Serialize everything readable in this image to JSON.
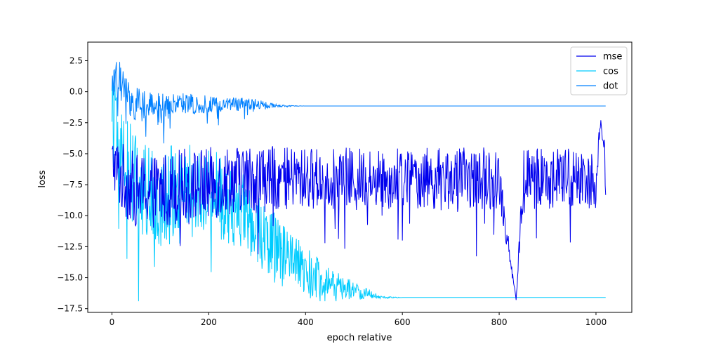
{
  "chart_data": {
    "type": "line",
    "title": "",
    "xlabel": "epoch relative",
    "ylabel": "loss",
    "xlim": [
      -50,
      1074
    ],
    "ylim": [
      -17.8,
      4.0
    ],
    "x_ticks": [
      0,
      200,
      400,
      600,
      800,
      1000
    ],
    "x_tick_labels": [
      "0",
      "200",
      "400",
      "600",
      "800",
      "1000"
    ],
    "y_ticks": [
      2.5,
      0.0,
      -2.5,
      -5.0,
      -7.5,
      -10.0,
      -12.5,
      -15.0,
      -17.5
    ],
    "y_tick_labels": [
      "2.5",
      "0.0",
      "−2.5",
      "−5.0",
      "−7.5",
      "−10.0",
      "−12.5",
      "−15.0",
      "−17.5"
    ],
    "grid": false,
    "legend_position": "top-right",
    "series": [
      {
        "name": "mse",
        "color": "#0000ee",
        "x": [
          0,
          20,
          50,
          100,
          150,
          200,
          250,
          300,
          350,
          400,
          450,
          500,
          550,
          600,
          650,
          700,
          750,
          800,
          835,
          850,
          900,
          950,
          1000,
          1010,
          1020
        ],
        "values": [
          -5.5,
          -7.0,
          -8.0,
          -8.0,
          -7.5,
          -7.5,
          -7.0,
          -7.0,
          -7.0,
          -7.0,
          -7.0,
          -7.0,
          -7.0,
          -7.0,
          -7.0,
          -7.0,
          -7.0,
          -7.0,
          -16.8,
          -7.0,
          -7.0,
          -7.0,
          -7.0,
          -2.3,
          -6.5
        ],
        "spread": [
          2.0,
          3.0,
          3.0,
          3.0,
          3.0,
          3.0,
          2.8,
          2.8,
          2.5,
          2.5,
          2.5,
          2.5,
          2.5,
          2.5,
          2.5,
          2.5,
          2.5,
          2.5,
          0,
          2.5,
          2.5,
          2.5,
          2.5,
          0,
          2.0
        ]
      },
      {
        "name": "cos",
        "color": "#00ccff",
        "x": [
          0,
          10,
          30,
          60,
          100,
          150,
          200,
          250,
          300,
          350,
          400,
          450,
          500,
          520,
          560,
          600,
          650,
          700,
          800,
          900,
          1000,
          1020
        ],
        "values": [
          0.0,
          -4.0,
          -6.0,
          -8.0,
          -8.5,
          -7.5,
          -8.0,
          -9.0,
          -11.0,
          -13.0,
          -14.5,
          -15.5,
          -16.0,
          -16.2,
          -16.6,
          -16.6,
          -16.6,
          -16.6,
          -16.6,
          -16.6,
          -16.6,
          -16.6
        ],
        "spread": [
          2.5,
          3.5,
          4.0,
          4.0,
          4.0,
          3.5,
          3.5,
          3.5,
          3.0,
          2.5,
          2.0,
          1.3,
          0.8,
          0.5,
          0.1,
          0,
          0,
          0,
          0,
          0,
          0,
          0
        ]
      },
      {
        "name": "dot",
        "color": "#0080ff",
        "x": [
          0,
          10,
          25,
          50,
          100,
          150,
          200,
          250,
          300,
          330,
          360,
          400,
          500,
          600,
          700,
          800,
          900,
          1000,
          1020
        ],
        "values": [
          0.5,
          1.5,
          0.0,
          -1.0,
          -1.2,
          -1.0,
          -1.0,
          -1.0,
          -1.0,
          -1.1,
          -1.15,
          -1.15,
          -1.15,
          -1.15,
          -1.15,
          -1.15,
          -1.15,
          -1.15,
          -1.15
        ],
        "spread": [
          1.2,
          1.5,
          1.5,
          1.4,
          1.1,
          0.9,
          0.7,
          0.6,
          0.4,
          0.2,
          0.05,
          0,
          0,
          0,
          0,
          0,
          0,
          0,
          0
        ]
      }
    ]
  }
}
